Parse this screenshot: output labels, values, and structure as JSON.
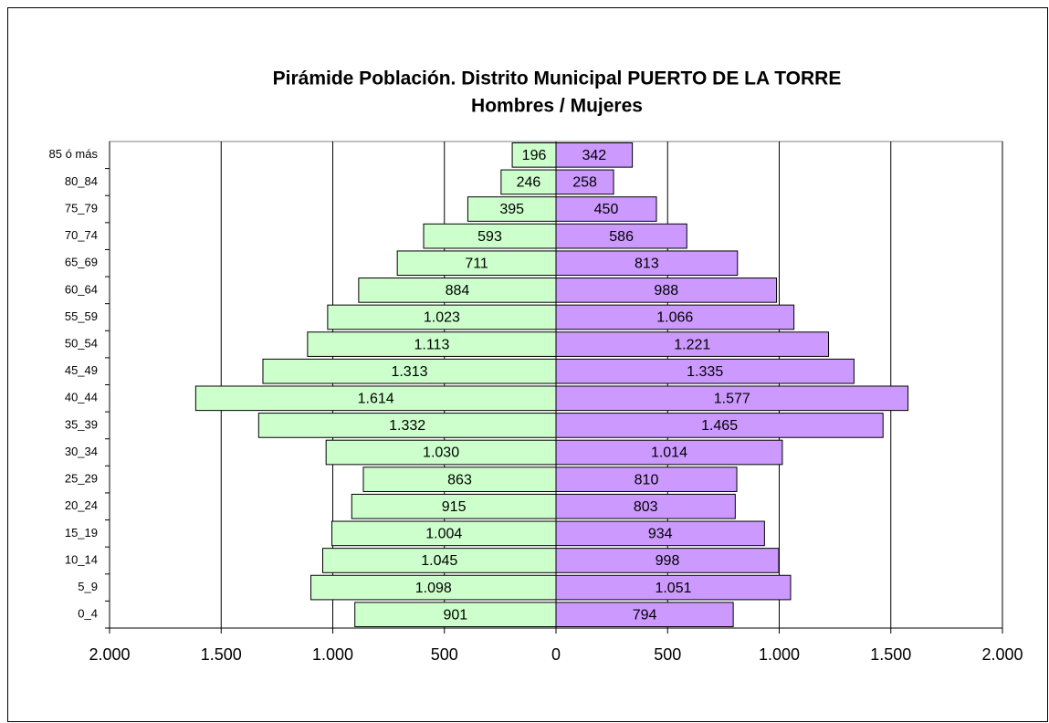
{
  "chart_data": {
    "type": "pyramid",
    "title": "Pirámide Población. Distrito Municipal PUERTO DE LA TORRE",
    "subtitle": "Hombres / Mujeres",
    "categories": [
      "0_4",
      "5_9",
      "10_14",
      "15_19",
      "20_24",
      "25_29",
      "30_34",
      "35_39",
      "40_44",
      "45_49",
      "50_54",
      "55_59",
      "60_64",
      "65_69",
      "70_74",
      "75_79",
      "80_84",
      "85 ó más"
    ],
    "series": [
      {
        "color": "#ccffcc",
        "values": [
          901,
          1098,
          1045,
          1004,
          915,
          863,
          1030,
          1332,
          1614,
          1313,
          1113,
          1023,
          884,
          711,
          593,
          395,
          246,
          196
        ],
        "value_labels": [
          "901",
          "1.098",
          "1.045",
          "1.004",
          "915",
          "863",
          "1.030",
          "1.332",
          "1.614",
          "1.313",
          "1.113",
          "1.023",
          "884",
          "711",
          "593",
          "395",
          "246",
          "196"
        ]
      },
      {
        "color": "#cc99ff",
        "values": [
          794,
          1051,
          998,
          934,
          803,
          810,
          1014,
          1465,
          1577,
          1335,
          1221,
          1066,
          988,
          813,
          586,
          450,
          258,
          342
        ],
        "value_labels": [
          "794",
          "1.051",
          "998",
          "934",
          "803",
          "810",
          "1.014",
          "1.465",
          "1.577",
          "1.335",
          "1.221",
          "1.066",
          "988",
          "813",
          "586",
          "450",
          "258",
          "342"
        ]
      }
    ],
    "xlim": [
      -2000,
      2000
    ],
    "xticks": [
      {
        "value": -2000,
        "label": "2.000"
      },
      {
        "value": -1500,
        "label": "1.500"
      },
      {
        "value": -1000,
        "label": "1.000"
      },
      {
        "value": -500,
        "label": "500"
      },
      0,
      500,
      {
        "value": 1000,
        "label": "1.000"
      },
      {
        "value": 1500,
        "label": "1.500"
      },
      {
        "value": 2000,
        "label": "2.000"
      }
    ],
    "grid": true
  }
}
